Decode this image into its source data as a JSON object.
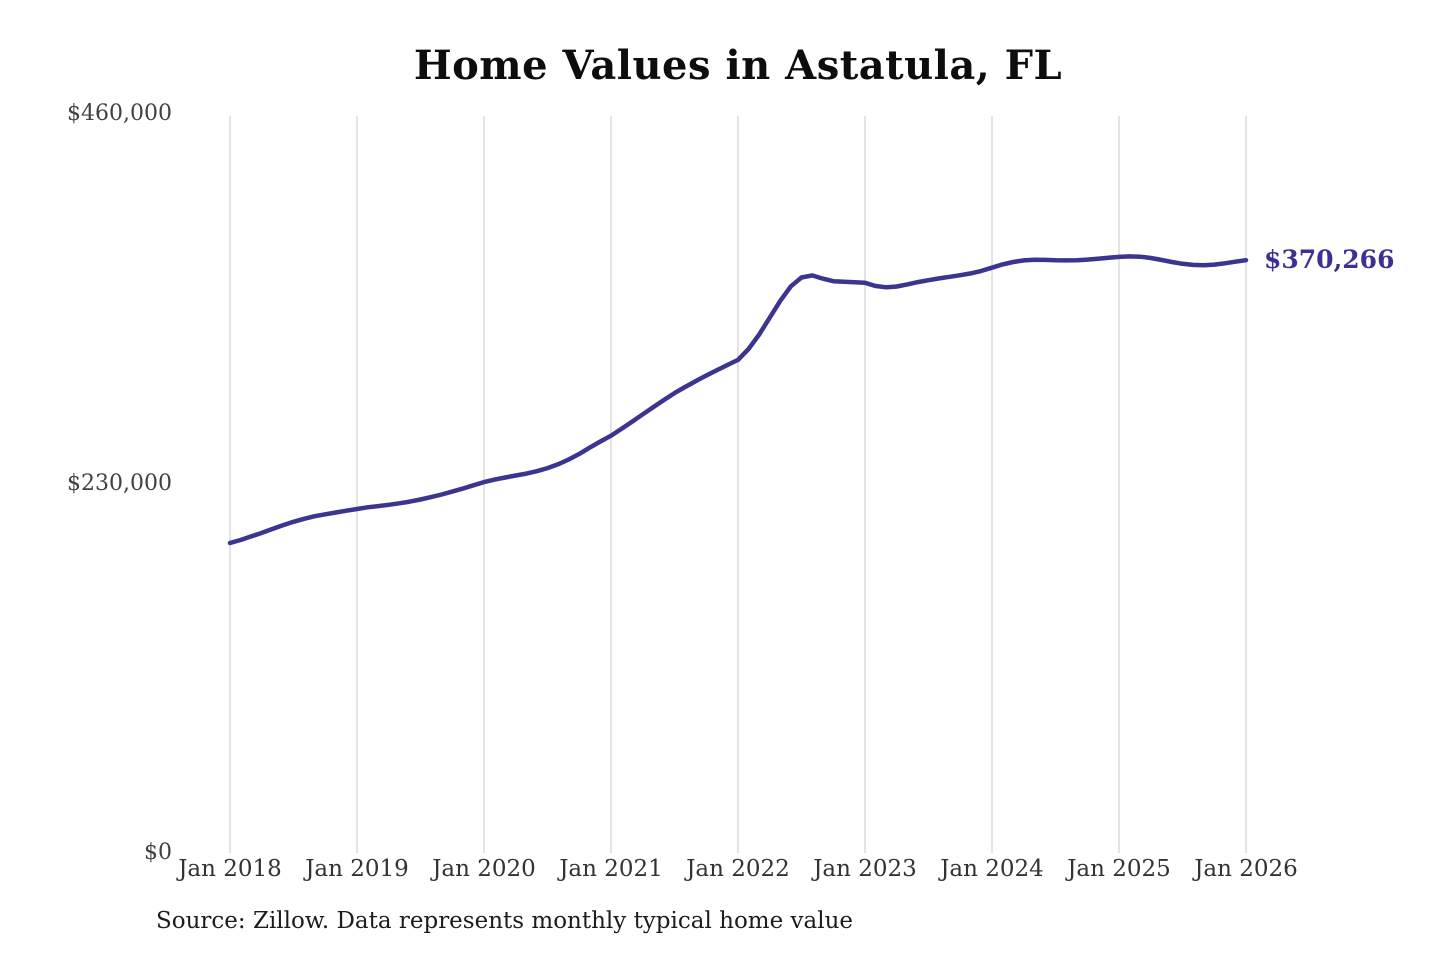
{
  "page": {
    "background_color": "#ffffff"
  },
  "source_note": "Source: Zillow. Data represents monthly typical home value",
  "chart_data": {
    "type": "line",
    "title": "Home Values in Astatula, FL",
    "xlabel": "",
    "ylabel": "",
    "x_interval": "monthly",
    "x_start": "Jan 2018",
    "x_end": "Jan 2026",
    "x_tick_labels": [
      "Jan 2018",
      "Jan 2019",
      "Jan 2020",
      "Jan 2021",
      "Jan 2022",
      "Jan 2023",
      "Jan 2024",
      "Jan 2025",
      "Jan 2026"
    ],
    "y_ticks": [
      0,
      230000,
      460000
    ],
    "y_tick_labels": [
      "$0",
      "$230,000",
      "$460,000"
    ],
    "ylim": [
      0,
      460000
    ],
    "grid": "vertical-only",
    "grid_color": "#c9c9c9",
    "legend": "none",
    "line_color": "#3b3590",
    "end_label": "$370,266",
    "end_label_color": "#3b3191",
    "end_value": 370266,
    "series": [
      {
        "name": "Typical home value",
        "values": [
          194200,
          196100,
          198300,
          200500,
          202900,
          205200,
          207400,
          209300,
          210900,
          212100,
          213200,
          214300,
          215400,
          216400,
          217200,
          218000,
          218900,
          220000,
          221300,
          222800,
          224400,
          226200,
          228100,
          230100,
          232100,
          233700,
          235000,
          236200,
          237400,
          238900,
          240800,
          243200,
          246200,
          249700,
          253600,
          257400,
          261000,
          265300,
          269800,
          274300,
          278800,
          283200,
          287500,
          291300,
          295000,
          298500,
          301800,
          305000,
          308200,
          315000,
          324000,
          334500,
          345000,
          354000,
          359500,
          360800,
          358800,
          357200,
          356800,
          356500,
          356200,
          354200,
          353400,
          353900,
          355200,
          356600,
          357800,
          358900,
          359900,
          360900,
          362000,
          363600,
          365600,
          367600,
          369100,
          370100,
          370500,
          370400,
          370200,
          370100,
          370200,
          370600,
          371200,
          371800,
          372300,
          372600,
          372400,
          371600,
          370400,
          369100,
          368000,
          367300,
          367100,
          367500,
          368300,
          369300,
          370266
        ]
      }
    ]
  }
}
